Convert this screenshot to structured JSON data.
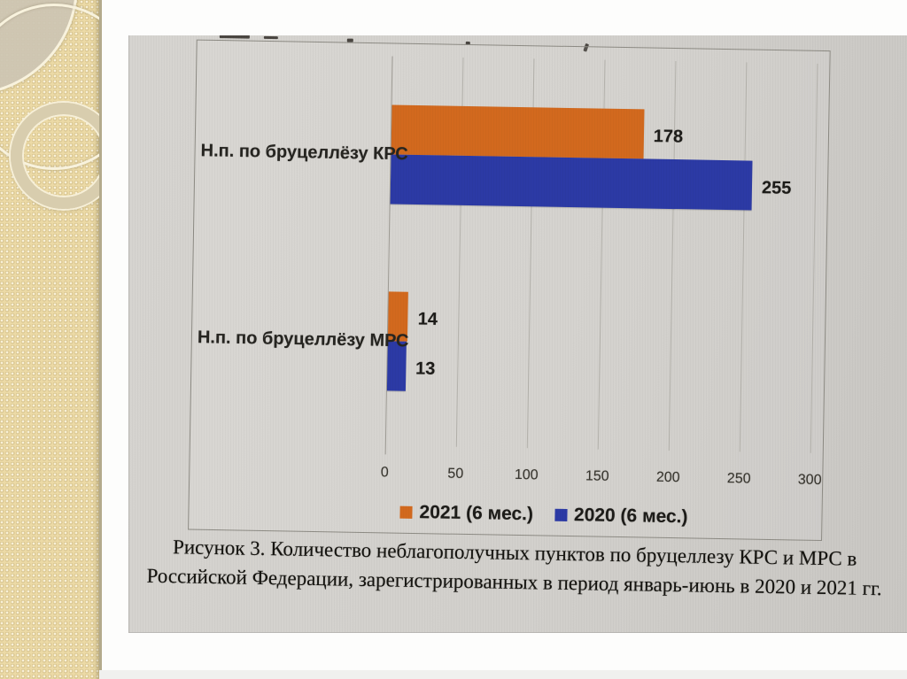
{
  "figure_caption": {
    "line1": "Рисунок 3. Количество неблагополучных пунктов по бруцеллезу КРС и МРС в",
    "line2": "Российской Федерации, зарегистрированных в период январь-июнь в 2020 и 2021 гг."
  },
  "chart_data": {
    "type": "bar",
    "orientation": "horizontal",
    "title": "",
    "categories": [
      "Н.п. по бруцеллёзу КРС",
      "Н.п. по бруцеллёзу МРС"
    ],
    "series": [
      {
        "name": "2021 (6 мес.)",
        "color": "#d2691e",
        "values": [
          178,
          14
        ]
      },
      {
        "name": "2020 (6 мес.)",
        "color": "#2c3aa5",
        "values": [
          255,
          13
        ]
      }
    ],
    "x_ticks": [
      0,
      50,
      100,
      150,
      200,
      250,
      300
    ],
    "xlim": [
      0,
      300
    ],
    "value_labels": [
      [
        178,
        14
      ],
      [
        255,
        13
      ]
    ],
    "grid": "vertical gridlines on",
    "legend_position": "bottom"
  },
  "colors": {
    "bar_2021": "#d2691e",
    "bar_2020": "#2c3aa5",
    "photo_background": "#d2d0cc",
    "sidebar_background": "#ecdaa6",
    "gridline": "#b4b2ac",
    "text": "#24231f"
  }
}
